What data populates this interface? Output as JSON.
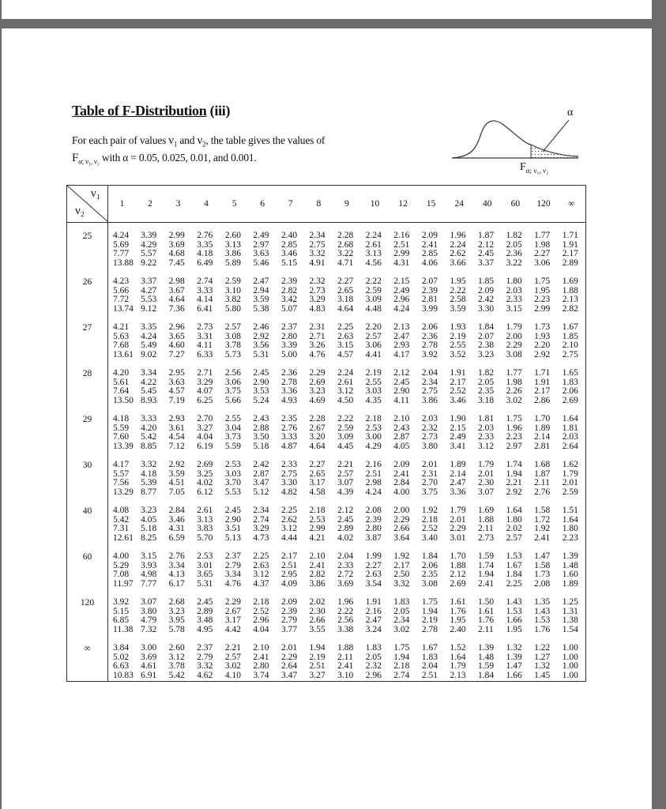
{
  "title": {
    "main": "Table of F-Distribution",
    "suffix": "(iii)"
  },
  "description": {
    "line1_pre": "For each pair of values ",
    "nu": "ν",
    "sub1": "1",
    "sub2": "2",
    "and": " and ",
    "line1_post": ", the table gives the values of",
    "F": "F",
    "F_sub": "α; ν₁, ν₂",
    "line2": " with α = 0.05,  0.025,  0.01,  and  0.001."
  },
  "figure": {
    "alpha_label": "α",
    "F_label": "F",
    "F_sub": "α; ν₁, ν₂"
  },
  "table": {
    "corner_v1": "ν₁",
    "corner_v2": "ν₂",
    "columns": [
      "1",
      "2",
      "3",
      "4",
      "5",
      "6",
      "7",
      "8",
      "9",
      "10",
      "12",
      "15",
      "24",
      "40",
      "60",
      "120",
      "∞"
    ],
    "rows": [
      {
        "v2": "25",
        "values": [
          [
            "4.24",
            "3.39",
            "2.99",
            "2.76",
            "2.60",
            "2.49",
            "2.40",
            "2.34",
            "2.28",
            "2.24",
            "2.16",
            "2.09",
            "1.96",
            "1.87",
            "1.82",
            "1.77",
            "1.71"
          ],
          [
            "5.69",
            "4.29",
            "3.69",
            "3.35",
            "3.13",
            "2.97",
            "2.85",
            "2.75",
            "2.68",
            "2.61",
            "2.51",
            "2.41",
            "2.24",
            "2.12",
            "2.05",
            "1.98",
            "1.91"
          ],
          [
            "7.77",
            "5.57",
            "4.68",
            "4.18",
            "3.86",
            "3.63",
            "3.46",
            "3.32",
            "3.22",
            "3.13",
            "2.99",
            "2.85",
            "2.62",
            "2.45",
            "2.36",
            "2.27",
            "2.17"
          ],
          [
            "13.88",
            "9.22",
            "7.45",
            "6.49",
            "5.89",
            "5.46",
            "5.15",
            "4.91",
            "4.71",
            "4.56",
            "4.31",
            "4.06",
            "3.66",
            "3.37",
            "3.22",
            "3.06",
            "2.89"
          ]
        ]
      },
      {
        "v2": "26",
        "values": [
          [
            "4.23",
            "3.37",
            "2.98",
            "2.74",
            "2.59",
            "2.47",
            "2.39",
            "2.32",
            "2.27",
            "2.22",
            "2.15",
            "2.07",
            "1.95",
            "1.85",
            "1.80",
            "1.75",
            "1.69"
          ],
          [
            "5.66",
            "4.27",
            "3.67",
            "3.33",
            "3.10",
            "2.94",
            "2.82",
            "2.73",
            "2.65",
            "2.59",
            "2.49",
            "2.39",
            "2.22",
            "2.09",
            "2.03",
            "1.95",
            "1.88"
          ],
          [
            "7.72",
            "5.53",
            "4.64",
            "4.14",
            "3.82",
            "3.59",
            "3.42",
            "3.29",
            "3.18",
            "3.09",
            "2.96",
            "2.81",
            "2.58",
            "2.42",
            "2.33",
            "2.23",
            "2.13"
          ],
          [
            "13.74",
            "9.12",
            "7.36",
            "6.41",
            "5.80",
            "5.38",
            "5.07",
            "4.83",
            "4.64",
            "4.48",
            "4.24",
            "3.99",
            "3.59",
            "3.30",
            "3.15",
            "2.99",
            "2.82"
          ]
        ]
      },
      {
        "v2": "27",
        "values": [
          [
            "4.21",
            "3.35",
            "2.96",
            "2.73",
            "2.57",
            "2.46",
            "2.37",
            "2.31",
            "2.25",
            "2.20",
            "2.13",
            "2.06",
            "1.93",
            "1.84",
            "1.79",
            "1.73",
            "1.67"
          ],
          [
            "5.63",
            "4.24",
            "3.65",
            "3.31",
            "3.08",
            "2.92",
            "2.80",
            "2.71",
            "2.63",
            "2.57",
            "2.47",
            "2.36",
            "2.19",
            "2.07",
            "2.00",
            "1.93",
            "1.85"
          ],
          [
            "7.68",
            "5.49",
            "4.60",
            "4.11",
            "3.78",
            "3.56",
            "3.39",
            "3.26",
            "3.15",
            "3.06",
            "2.93",
            "2.78",
            "2.55",
            "2.38",
            "2.29",
            "2.20",
            "2.10"
          ],
          [
            "13.61",
            "9.02",
            "7.27",
            "6.33",
            "5.73",
            "5.31",
            "5.00",
            "4.76",
            "4.57",
            "4.41",
            "4.17",
            "3.92",
            "3.52",
            "3.23",
            "3.08",
            "2.92",
            "2.75"
          ]
        ]
      },
      {
        "v2": "28",
        "values": [
          [
            "4.20",
            "3.34",
            "2.95",
            "2.71",
            "2.56",
            "2.45",
            "2.36",
            "2.29",
            "2.24",
            "2.19",
            "2.12",
            "2.04",
            "1.91",
            "1.82",
            "1.77",
            "1.71",
            "1.65"
          ],
          [
            "5.61",
            "4.22",
            "3.63",
            "3.29",
            "3.06",
            "2.90",
            "2.78",
            "2.69",
            "2.61",
            "2.55",
            "2.45",
            "2.34",
            "2.17",
            "2.05",
            "1.98",
            "1.91",
            "1.83"
          ],
          [
            "7.64",
            "5.45",
            "4.57",
            "4.07",
            "3.75",
            "3.53",
            "3.36",
            "3.23",
            "3.12",
            "3.03",
            "2.90",
            "2.75",
            "2.52",
            "2.35",
            "2.26",
            "2.17",
            "2.06"
          ],
          [
            "13.50",
            "8.93",
            "7.19",
            "6.25",
            "5.66",
            "5.24",
            "4.93",
            "4.69",
            "4.50",
            "4.35",
            "4.11",
            "3.86",
            "3.46",
            "3.18",
            "3.02",
            "2.86",
            "2.69"
          ]
        ]
      },
      {
        "v2": "29",
        "values": [
          [
            "4.18",
            "3.33",
            "2.93",
            "2.70",
            "2.55",
            "2.43",
            "2.35",
            "2.28",
            "2.22",
            "2.18",
            "2.10",
            "2.03",
            "1.90",
            "1.81",
            "1.75",
            "1.70",
            "1.64"
          ],
          [
            "5.59",
            "4.20",
            "3.61",
            "3.27",
            "3.04",
            "2.88",
            "2.76",
            "2.67",
            "2.59",
            "2.53",
            "2.43",
            "2.32",
            "2.15",
            "2.03",
            "1.96",
            "1.89",
            "1.81"
          ],
          [
            "7.60",
            "5.42",
            "4.54",
            "4.04",
            "3.73",
            "3.50",
            "3.33",
            "3.20",
            "3.09",
            "3.00",
            "2.87",
            "2.73",
            "2.49",
            "2.33",
            "2.23",
            "2.14",
            "2.03"
          ],
          [
            "13.39",
            "8.85",
            "7.12",
            "6.19",
            "5.59",
            "5.18",
            "4.87",
            "4.64",
            "4.45",
            "4.29",
            "4.05",
            "3.80",
            "3.41",
            "3.12",
            "2.97",
            "2.81",
            "2.64"
          ]
        ]
      },
      {
        "v2": "30",
        "values": [
          [
            "4.17",
            "3.32",
            "2.92",
            "2.69",
            "2.53",
            "2.42",
            "2.33",
            "2.27",
            "2.21",
            "2.16",
            "2.09",
            "2.01",
            "1.89",
            "1.79",
            "1.74",
            "1.68",
            "1.62"
          ],
          [
            "5.57",
            "4.18",
            "3.59",
            "3.25",
            "3.03",
            "2.87",
            "2.75",
            "2.65",
            "2.57",
            "2.51",
            "2.41",
            "2.31",
            "2.14",
            "2.01",
            "1.94",
            "1.87",
            "1.79"
          ],
          [
            "7.56",
            "5.39",
            "4.51",
            "4.02",
            "3.70",
            "3.47",
            "3.30",
            "3.17",
            "3.07",
            "2.98",
            "2.84",
            "2.70",
            "2.47",
            "2.30",
            "2.21",
            "2.11",
            "2.01"
          ],
          [
            "13.29",
            "8.77",
            "7.05",
            "6.12",
            "5.53",
            "5.12",
            "4.82",
            "4.58",
            "4.39",
            "4.24",
            "4.00",
            "3.75",
            "3.36",
            "3.07",
            "2.92",
            "2.76",
            "2.59"
          ]
        ]
      },
      {
        "v2": "40",
        "values": [
          [
            "4.08",
            "3.23",
            "2.84",
            "2.61",
            "2.45",
            "2.34",
            "2.25",
            "2.18",
            "2.12",
            "2.08",
            "2.00",
            "1.92",
            "1.79",
            "1.69",
            "1.64",
            "1.58",
            "1.51"
          ],
          [
            "5.42",
            "4.05",
            "3.46",
            "3.13",
            "2.90",
            "2.74",
            "2.62",
            "2.53",
            "2.45",
            "2.39",
            "2.29",
            "2.18",
            "2.01",
            "1.88",
            "1.80",
            "1.72",
            "1.64"
          ],
          [
            "7.31",
            "5.18",
            "4.31",
            "3.83",
            "3.51",
            "3.29",
            "3.12",
            "2.99",
            "2.89",
            "2.80",
            "2.66",
            "2.52",
            "2.29",
            "2.11",
            "2.02",
            "1.92",
            "1.80"
          ],
          [
            "12.61",
            "8.25",
            "6.59",
            "5.70",
            "5.13",
            "4.73",
            "4.44",
            "4.21",
            "4.02",
            "3.87",
            "3.64",
            "3.40",
            "3.01",
            "2.73",
            "2.57",
            "2.41",
            "2.23"
          ]
        ]
      },
      {
        "v2": "60",
        "values": [
          [
            "4.00",
            "3.15",
            "2.76",
            "2.53",
            "2.37",
            "2.25",
            "2.17",
            "2.10",
            "2.04",
            "1.99",
            "1.92",
            "1.84",
            "1.70",
            "1.59",
            "1.53",
            "1.47",
            "1.39"
          ],
          [
            "5.29",
            "3.93",
            "3.34",
            "3.01",
            "2.79",
            "2.63",
            "2.51",
            "2.41",
            "2.33",
            "2.27",
            "2.17",
            "2.06",
            "1.88",
            "1.74",
            "1.67",
            "1.58",
            "1.48"
          ],
          [
            "7.08",
            "4.98",
            "4.13",
            "3.65",
            "3.34",
            "3.12",
            "2.95",
            "2.82",
            "2.72",
            "2.63",
            "2.50",
            "2.35",
            "2.12",
            "1.94",
            "1.84",
            "1.73",
            "1.60"
          ],
          [
            "11.97",
            "7.77",
            "6.17",
            "5.31",
            "4.76",
            "4.37",
            "4.09",
            "3.86",
            "3.69",
            "3.54",
            "3.32",
            "3.08",
            "2.69",
            "2.41",
            "2.25",
            "2.08",
            "1.89"
          ]
        ]
      },
      {
        "v2": "120",
        "values": [
          [
            "3.92",
            "3.07",
            "2.68",
            "2.45",
            "2.29",
            "2.18",
            "2.09",
            "2.02",
            "1.96",
            "1.91",
            "1.83",
            "1.75",
            "1.61",
            "1.50",
            "1.43",
            "1.35",
            "1.25"
          ],
          [
            "5.15",
            "3.80",
            "3.23",
            "2.89",
            "2.67",
            "2.52",
            "2.39",
            "2.30",
            "2.22",
            "2.16",
            "2.05",
            "1.94",
            "1.76",
            "1.61",
            "1.53",
            "1.43",
            "1.31"
          ],
          [
            "6.85",
            "4.79",
            "3.95",
            "3.48",
            "3.17",
            "2.96",
            "2.79",
            "2.66",
            "2.56",
            "2.47",
            "2.34",
            "2.19",
            "1.95",
            "1.76",
            "1.66",
            "1.53",
            "1.38"
          ],
          [
            "11.38",
            "7.32",
            "5.78",
            "4.95",
            "4.42",
            "4.04",
            "3.77",
            "3.55",
            "3.38",
            "3.24",
            "3.02",
            "2.78",
            "2.40",
            "2.11",
            "1.95",
            "1.76",
            "1.54"
          ]
        ]
      },
      {
        "v2": "∞",
        "values": [
          [
            "3.84",
            "3.00",
            "2.60",
            "2.37",
            "2.21",
            "2.10",
            "2.01",
            "1.94",
            "1.88",
            "1.83",
            "1.75",
            "1.67",
            "1.52",
            "1.39",
            "1.32",
            "1.22",
            "1.00"
          ],
          [
            "5.02",
            "3.69",
            "3.12",
            "2.79",
            "2.57",
            "2.41",
            "2.29",
            "2.19",
            "2.11",
            "2.05",
            "1.94",
            "1.83",
            "1.64",
            "1.48",
            "1.39",
            "1.27",
            "1.00"
          ],
          [
            "6.63",
            "4.61",
            "3.78",
            "3.32",
            "3.02",
            "2.80",
            "2.64",
            "2.51",
            "2.41",
            "2.32",
            "2.18",
            "2.04",
            "1.79",
            "1.59",
            "1.47",
            "1.32",
            "1.00"
          ],
          [
            "10.83",
            "6.91",
            "5.42",
            "4.62",
            "4.10",
            "3.74",
            "3.47",
            "3.27",
            "3.10",
            "2.96",
            "2.74",
            "2.51",
            "2.13",
            "1.84",
            "1.66",
            "1.45",
            "1.00"
          ]
        ]
      }
    ]
  }
}
